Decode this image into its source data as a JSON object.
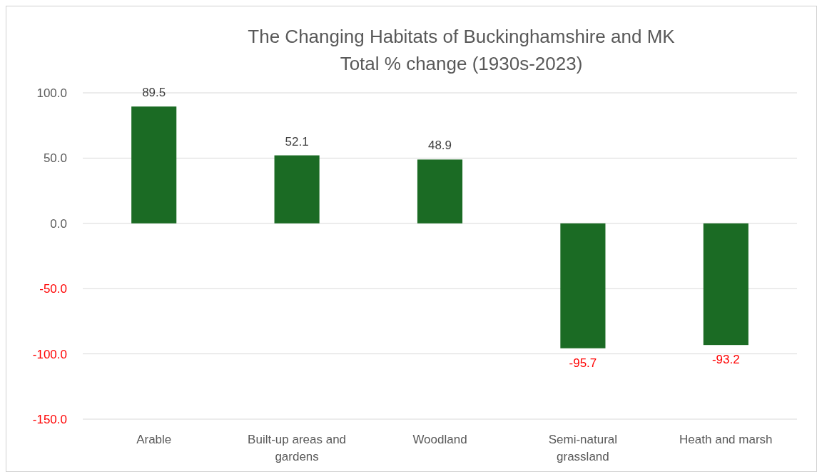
{
  "chart_data": {
    "type": "bar",
    "title": "The Changing Habitats of Buckinghamshire and MK",
    "subtitle": "Total % change (1930s-2023)",
    "categories": [
      "Arable",
      "Built-up areas and gardens",
      "Woodland",
      "Semi-natural grassland",
      "Heath and marsh"
    ],
    "values": [
      89.5,
      52.1,
      48.9,
      -95.7,
      -93.2
    ],
    "color": "#1b6b24",
    "ylim": [
      -150,
      100
    ],
    "yticks": [
      {
        "value": -150,
        "label": "-150.0"
      },
      {
        "value": -100,
        "label": "-100.0"
      },
      {
        "value": -50,
        "label": "-50.0"
      },
      {
        "value": 0,
        "label": "0.0"
      },
      {
        "value": 50,
        "label": "50.0"
      },
      {
        "value": 100,
        "label": "100.0"
      }
    ],
    "grid": true,
    "data_labels": true
  }
}
